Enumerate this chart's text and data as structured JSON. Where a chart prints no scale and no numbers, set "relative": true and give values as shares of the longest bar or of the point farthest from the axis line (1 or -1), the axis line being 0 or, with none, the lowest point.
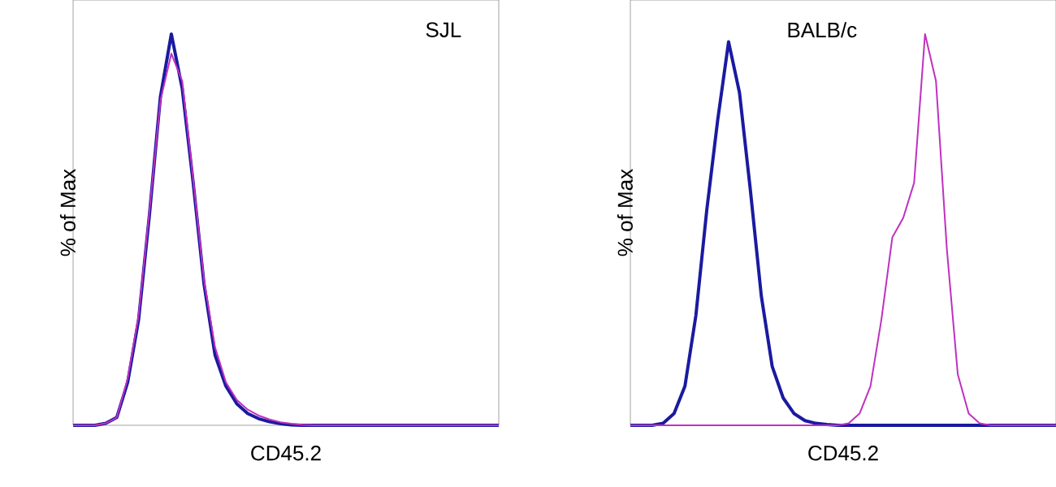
{
  "chart_data": [
    {
      "type": "line",
      "relative": true,
      "xlabel": "CD45.2",
      "ylabel": "% of Max",
      "annotations": [
        "SJL"
      ],
      "categories": [
        null,
        null,
        null,
        null,
        null,
        null,
        null,
        null,
        null,
        null,
        null,
        null,
        null,
        null,
        null,
        null,
        null,
        null,
        null,
        null,
        null,
        null,
        null,
        null,
        null,
        null,
        null,
        null,
        null,
        null,
        null,
        null,
        null,
        null,
        null,
        null,
        null,
        null,
        null,
        null
      ],
      "series": [
        {
          "color": "#1a1aa0",
          "values": [
            0,
            0,
            0,
            0.005,
            0.02,
            0.11,
            0.27,
            0.54,
            0.84,
            1,
            0.86,
            0.62,
            0.36,
            0.18,
            0.1,
            0.055,
            0.03,
            0.017,
            0.009,
            0.004,
            0.001,
            0,
            0,
            0,
            0,
            0,
            0,
            0,
            0,
            0,
            0,
            0,
            0,
            0,
            0,
            0,
            0,
            0,
            0,
            0
          ]
        },
        {
          "color": "#c030c0",
          "values": [
            0,
            0,
            0,
            0.005,
            0.02,
            0.12,
            0.28,
            0.55,
            0.83,
            0.95,
            0.88,
            0.63,
            0.37,
            0.2,
            0.11,
            0.065,
            0.04,
            0.025,
            0.015,
            0.008,
            0.004,
            0.001,
            0,
            0,
            0,
            0,
            0,
            0,
            0,
            0,
            0,
            0,
            0,
            0,
            0,
            0,
            0,
            0,
            0,
            0
          ]
        }
      ]
    },
    {
      "type": "line",
      "relative": true,
      "xlabel": "CD45.2",
      "ylabel": "% of Max",
      "annotations": [
        "BALB/c"
      ],
      "categories": [
        null,
        null,
        null,
        null,
        null,
        null,
        null,
        null,
        null,
        null,
        null,
        null,
        null,
        null,
        null,
        null,
        null,
        null,
        null,
        null,
        null,
        null,
        null,
        null,
        null,
        null,
        null,
        null,
        null,
        null,
        null,
        null,
        null,
        null,
        null,
        null,
        null,
        null,
        null,
        null
      ],
      "series": [
        {
          "color": "#1a1aa0",
          "values": [
            0,
            0,
            0,
            0.005,
            0.03,
            0.1,
            0.28,
            0.55,
            0.78,
            0.98,
            0.85,
            0.6,
            0.33,
            0.15,
            0.07,
            0.03,
            0.012,
            0.005,
            0.002,
            0,
            0,
            0,
            0,
            0,
            0,
            0,
            0,
            0,
            0,
            0,
            0,
            0,
            0,
            0,
            0,
            0,
            0,
            0,
            0,
            0
          ]
        },
        {
          "color": "#c030c0",
          "values": [
            0,
            0,
            0,
            0,
            0,
            0,
            0,
            0,
            0,
            0,
            0,
            0,
            0,
            0,
            0,
            0,
            0,
            0,
            0,
            0,
            0.005,
            0.03,
            0.1,
            0.27,
            0.48,
            0.53,
            0.62,
            1,
            0.88,
            0.45,
            0.13,
            0.03,
            0.005,
            0,
            0,
            0,
            0,
            0,
            0,
            0
          ]
        }
      ]
    }
  ]
}
